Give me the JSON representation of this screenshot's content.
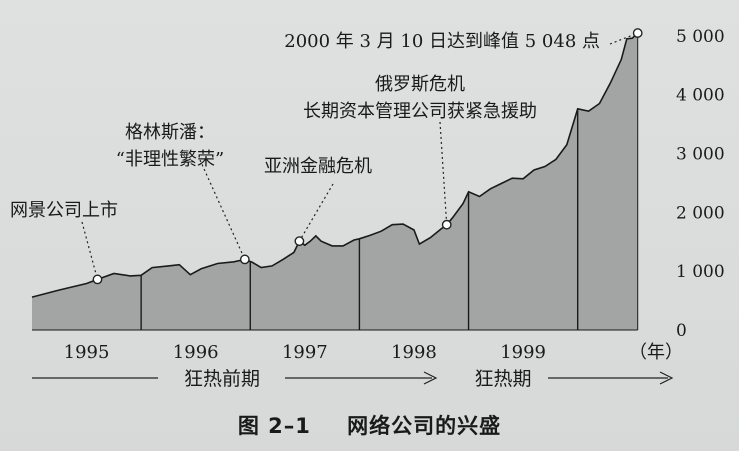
{
  "chart_data": {
    "type": "area",
    "title": "",
    "xlabel": "",
    "ylabel": "",
    "x_unit_label": "（年）",
    "xlim": [
      1994.5,
      2000.3
    ],
    "ylim": [
      0,
      5100
    ],
    "y_ticks": [
      0,
      1000,
      2000,
      3000,
      4000,
      5000
    ],
    "y_tick_labels": [
      "0",
      "1 000",
      "2 000",
      "3 000",
      "4 000",
      "5 000"
    ],
    "x_ticks": [
      1995,
      1996,
      1997,
      1998,
      1999
    ],
    "x_tick_labels": [
      "1995",
      "1996",
      "1997",
      "1998",
      "1999"
    ],
    "year_dividers": [
      1995.5,
      1996.5,
      1997.5,
      1998.5,
      1999.5
    ],
    "grid": false,
    "fill_color": "#a3a5a5",
    "line_color": "#1a1a1a",
    "series": [
      {
        "points": [
          [
            1994.5,
            560
          ],
          [
            1994.75,
            680
          ],
          [
            1995.0,
            790
          ],
          [
            1995.1,
            860
          ],
          [
            1995.25,
            960
          ],
          [
            1995.4,
            920
          ],
          [
            1995.5,
            930
          ],
          [
            1995.6,
            1060
          ],
          [
            1995.75,
            1090
          ],
          [
            1995.85,
            1110
          ],
          [
            1995.95,
            940
          ],
          [
            1996.05,
            1040
          ],
          [
            1996.2,
            1130
          ],
          [
            1996.35,
            1160
          ],
          [
            1996.45,
            1200
          ],
          [
            1996.52,
            1150
          ],
          [
            1996.6,
            1060
          ],
          [
            1996.7,
            1090
          ],
          [
            1996.8,
            1200
          ],
          [
            1996.9,
            1320
          ],
          [
            1996.95,
            1510
          ],
          [
            1997.0,
            1440
          ],
          [
            1997.05,
            1510
          ],
          [
            1997.1,
            1600
          ],
          [
            1997.15,
            1510
          ],
          [
            1997.25,
            1430
          ],
          [
            1997.35,
            1430
          ],
          [
            1997.45,
            1530
          ],
          [
            1997.5,
            1550
          ],
          [
            1997.6,
            1610
          ],
          [
            1997.7,
            1680
          ],
          [
            1997.8,
            1790
          ],
          [
            1997.9,
            1800
          ],
          [
            1998.0,
            1700
          ],
          [
            1998.05,
            1460
          ],
          [
            1998.15,
            1570
          ],
          [
            1998.25,
            1720
          ],
          [
            1998.3,
            1790
          ],
          [
            1998.35,
            1900
          ],
          [
            1998.45,
            2150
          ],
          [
            1998.5,
            2350
          ],
          [
            1998.6,
            2270
          ],
          [
            1998.7,
            2400
          ],
          [
            1998.8,
            2490
          ],
          [
            1998.9,
            2580
          ],
          [
            1999.0,
            2570
          ],
          [
            1999.1,
            2720
          ],
          [
            1999.2,
            2780
          ],
          [
            1999.3,
            2900
          ],
          [
            1999.4,
            3150
          ],
          [
            1999.5,
            3760
          ],
          [
            1999.6,
            3720
          ],
          [
            1999.7,
            3850
          ],
          [
            1999.8,
            4200
          ],
          [
            1999.9,
            4600
          ],
          [
            1999.95,
            4950
          ],
          [
            2000.0,
            4960
          ],
          [
            2000.05,
            5048
          ]
        ]
      }
    ],
    "annotations": [
      {
        "lines": [
          "网景公司上市"
        ],
        "x": 1995.1,
        "y": 860,
        "anchor": "start",
        "label_pos": "left"
      },
      {
        "lines": [
          "格林斯潘：",
          "“非理性繁荣”"
        ],
        "x": 1996.45,
        "y": 1200,
        "anchor": "middle",
        "label_pos": "above"
      },
      {
        "lines": [
          "亚洲金融危机"
        ],
        "x": 1996.95,
        "y": 1510,
        "anchor": "middle",
        "label_pos": "above"
      },
      {
        "lines": [
          "俄罗斯危机",
          "长期资本管理公司获紧急援助"
        ],
        "x": 1998.3,
        "y": 1790,
        "anchor": "middle",
        "label_pos": "above"
      },
      {
        "lines": [
          "2000 年 3 月 10 日达到峰值 5 048 点"
        ],
        "x": 2000.05,
        "y": 5048,
        "anchor": "end",
        "label_pos": "above"
      }
    ],
    "phases": [
      {
        "label": "狂热前期"
      },
      {
        "label": "狂热期"
      }
    ]
  },
  "caption": {
    "number": "图 2–1",
    "text": "网络公司的兴盛"
  }
}
